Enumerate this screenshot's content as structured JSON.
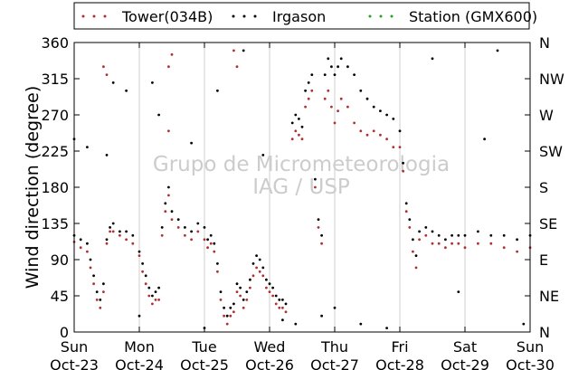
{
  "chart_data": {
    "type": "scatter",
    "title": "",
    "ylabel": "Wind direction (degree)",
    "ylim": [
      0,
      360
    ],
    "yticks": [
      0,
      45,
      90,
      135,
      180,
      225,
      270,
      315,
      360
    ],
    "yticks_right": [
      "N",
      "NE",
      "E",
      "SE",
      "S",
      "SW",
      "W",
      "NW",
      "N"
    ],
    "xlim": [
      0,
      7
    ],
    "xticks": [
      {
        "x": 0,
        "line1": "Sun",
        "line2": "Oct-23"
      },
      {
        "x": 1,
        "line1": "Mon",
        "line2": "Oct-24"
      },
      {
        "x": 2,
        "line1": "Tue",
        "line2": "Oct-25"
      },
      {
        "x": 3,
        "line1": "Wed",
        "line2": "Oct-26"
      },
      {
        "x": 4,
        "line1": "Thu",
        "line2": "Oct-27"
      },
      {
        "x": 5,
        "line1": "Fri",
        "line2": "Oct-28"
      },
      {
        "x": 6,
        "line1": "Sat",
        "line2": "Oct-29"
      },
      {
        "x": 7,
        "line1": "Sun",
        "line2": "Oct-30"
      }
    ],
    "grid": "vertical",
    "legend_position": "top",
    "watermark": [
      "Grupo de Micrometeorologia",
      "IAG / USP"
    ],
    "series": [
      {
        "name": "Tower(034B)",
        "color": "#b03030",
        "points": [
          [
            0.0,
            112
          ],
          [
            0.1,
            105
          ],
          [
            0.2,
            100
          ],
          [
            0.25,
            80
          ],
          [
            0.3,
            60
          ],
          [
            0.35,
            40
          ],
          [
            0.4,
            30
          ],
          [
            0.45,
            50
          ],
          [
            0.5,
            110
          ],
          [
            0.55,
            125
          ],
          [
            0.6,
            125
          ],
          [
            0.7,
            120
          ],
          [
            0.8,
            115
          ],
          [
            0.9,
            110
          ],
          [
            1.0,
            95
          ],
          [
            1.05,
            75
          ],
          [
            1.1,
            60
          ],
          [
            1.15,
            45
          ],
          [
            1.2,
            35
          ],
          [
            1.25,
            40
          ],
          [
            1.3,
            40
          ],
          [
            1.35,
            120
          ],
          [
            1.4,
            150
          ],
          [
            1.45,
            170
          ],
          [
            1.5,
            140
          ],
          [
            1.6,
            130
          ],
          [
            1.7,
            120
          ],
          [
            1.8,
            115
          ],
          [
            1.9,
            125
          ],
          [
            2.0,
            115
          ],
          [
            2.05,
            105
          ],
          [
            2.1,
            110
          ],
          [
            2.15,
            100
          ],
          [
            2.2,
            75
          ],
          [
            2.25,
            40
          ],
          [
            2.3,
            20
          ],
          [
            2.35,
            10
          ],
          [
            2.4,
            20
          ],
          [
            2.45,
            25
          ],
          [
            2.5,
            50
          ],
          [
            2.55,
            45
          ],
          [
            2.6,
            30
          ],
          [
            2.65,
            40
          ],
          [
            2.7,
            55
          ],
          [
            2.75,
            70
          ],
          [
            2.8,
            80
          ],
          [
            2.85,
            75
          ],
          [
            2.9,
            70
          ],
          [
            2.95,
            55
          ],
          [
            3.0,
            50
          ],
          [
            3.05,
            45
          ],
          [
            3.1,
            35
          ],
          [
            3.15,
            30
          ],
          [
            3.2,
            30
          ],
          [
            3.25,
            25
          ],
          [
            3.35,
            240
          ],
          [
            3.4,
            250
          ],
          [
            3.45,
            245
          ],
          [
            3.5,
            240
          ],
          [
            3.55,
            280
          ],
          [
            3.6,
            290
          ],
          [
            3.65,
            300
          ],
          [
            3.7,
            180
          ],
          [
            3.75,
            130
          ],
          [
            3.8,
            110
          ],
          [
            3.85,
            290
          ],
          [
            3.9,
            300
          ],
          [
            3.95,
            280
          ],
          [
            4.0,
            260
          ],
          [
            4.05,
            275
          ],
          [
            4.1,
            290
          ],
          [
            4.2,
            280
          ],
          [
            4.3,
            260
          ],
          [
            4.4,
            250
          ],
          [
            4.5,
            245
          ],
          [
            4.6,
            250
          ],
          [
            4.7,
            245
          ],
          [
            4.8,
            240
          ],
          [
            4.9,
            230
          ],
          [
            5.0,
            230
          ],
          [
            5.05,
            200
          ],
          [
            5.1,
            150
          ],
          [
            5.15,
            130
          ],
          [
            5.2,
            100
          ],
          [
            5.25,
            80
          ],
          [
            5.3,
            115
          ],
          [
            5.4,
            120
          ],
          [
            5.5,
            110
          ],
          [
            5.6,
            110
          ],
          [
            5.7,
            105
          ],
          [
            5.8,
            110
          ],
          [
            5.9,
            110
          ],
          [
            6.0,
            105
          ],
          [
            6.2,
            110
          ],
          [
            6.4,
            110
          ],
          [
            6.6,
            105
          ],
          [
            6.8,
            100
          ],
          [
            7.0,
            105
          ],
          [
            0.45,
            330
          ],
          [
            0.5,
            320
          ],
          [
            1.45,
            330
          ],
          [
            1.5,
            345
          ],
          [
            1.45,
            250
          ],
          [
            2.5,
            330
          ],
          [
            2.45,
            350
          ]
        ]
      },
      {
        "name": "Irgason",
        "color": "#000000",
        "points": [
          [
            0.0,
            120
          ],
          [
            0.1,
            115
          ],
          [
            0.2,
            110
          ],
          [
            0.25,
            90
          ],
          [
            0.3,
            70
          ],
          [
            0.35,
            50
          ],
          [
            0.4,
            40
          ],
          [
            0.45,
            60
          ],
          [
            0.5,
            115
          ],
          [
            0.55,
            130
          ],
          [
            0.6,
            135
          ],
          [
            0.7,
            125
          ],
          [
            0.8,
            125
          ],
          [
            0.9,
            120
          ],
          [
            1.0,
            100
          ],
          [
            1.05,
            85
          ],
          [
            1.1,
            70
          ],
          [
            1.15,
            55
          ],
          [
            1.2,
            45
          ],
          [
            1.25,
            50
          ],
          [
            1.3,
            55
          ],
          [
            1.35,
            130
          ],
          [
            1.4,
            160
          ],
          [
            1.45,
            180
          ],
          [
            1.5,
            150
          ],
          [
            1.6,
            140
          ],
          [
            1.7,
            130
          ],
          [
            1.8,
            125
          ],
          [
            1.9,
            135
          ],
          [
            2.0,
            130
          ],
          [
            2.05,
            115
          ],
          [
            2.1,
            120
          ],
          [
            2.15,
            110
          ],
          [
            2.2,
            85
          ],
          [
            2.25,
            50
          ],
          [
            2.3,
            30
          ],
          [
            2.35,
            20
          ],
          [
            2.4,
            30
          ],
          [
            2.45,
            35
          ],
          [
            2.5,
            60
          ],
          [
            2.55,
            55
          ],
          [
            2.6,
            40
          ],
          [
            2.65,
            50
          ],
          [
            2.7,
            65
          ],
          [
            2.75,
            85
          ],
          [
            2.8,
            95
          ],
          [
            2.85,
            90
          ],
          [
            2.9,
            80
          ],
          [
            2.95,
            65
          ],
          [
            3.0,
            60
          ],
          [
            3.05,
            55
          ],
          [
            3.1,
            45
          ],
          [
            3.15,
            40
          ],
          [
            3.2,
            40
          ],
          [
            3.25,
            35
          ],
          [
            3.35,
            260
          ],
          [
            3.4,
            270
          ],
          [
            3.45,
            265
          ],
          [
            3.5,
            255
          ],
          [
            3.55,
            300
          ],
          [
            3.6,
            310
          ],
          [
            3.65,
            320
          ],
          [
            3.7,
            190
          ],
          [
            3.75,
            140
          ],
          [
            3.8,
            120
          ],
          [
            3.85,
            320
          ],
          [
            3.9,
            340
          ],
          [
            3.95,
            330
          ],
          [
            4.0,
            320
          ],
          [
            4.05,
            330
          ],
          [
            4.1,
            340
          ],
          [
            4.2,
            330
          ],
          [
            4.3,
            320
          ],
          [
            4.4,
            300
          ],
          [
            4.5,
            290
          ],
          [
            4.6,
            280
          ],
          [
            4.7,
            275
          ],
          [
            4.8,
            270
          ],
          [
            4.9,
            265
          ],
          [
            5.0,
            250
          ],
          [
            5.05,
            210
          ],
          [
            5.1,
            160
          ],
          [
            5.15,
            140
          ],
          [
            5.2,
            115
          ],
          [
            5.25,
            95
          ],
          [
            5.3,
            125
          ],
          [
            5.4,
            130
          ],
          [
            5.5,
            125
          ],
          [
            5.6,
            120
          ],
          [
            5.7,
            115
          ],
          [
            5.8,
            120
          ],
          [
            5.9,
            120
          ],
          [
            6.0,
            120
          ],
          [
            6.2,
            125
          ],
          [
            6.4,
            120
          ],
          [
            6.6,
            120
          ],
          [
            6.8,
            115
          ],
          [
            7.0,
            120
          ],
          [
            0.0,
            240
          ],
          [
            0.2,
            230
          ],
          [
            0.5,
            220
          ],
          [
            0.6,
            310
          ],
          [
            0.8,
            300
          ],
          [
            1.2,
            310
          ],
          [
            1.3,
            270
          ],
          [
            1.8,
            235
          ],
          [
            2.2,
            300
          ],
          [
            2.6,
            350
          ],
          [
            2.9,
            220
          ],
          [
            3.4,
            10
          ],
          [
            3.8,
            20
          ],
          [
            4.4,
            10
          ],
          [
            4.8,
            5
          ],
          [
            5.5,
            340
          ],
          [
            5.9,
            50
          ],
          [
            6.3,
            240
          ],
          [
            6.5,
            350
          ],
          [
            6.9,
            10
          ],
          [
            1.0,
            20
          ],
          [
            2.0,
            5
          ],
          [
            3.2,
            15
          ],
          [
            4.0,
            30
          ]
        ]
      },
      {
        "name": "Station (GMX600)",
        "color": "#2ca02c",
        "points": []
      }
    ]
  }
}
